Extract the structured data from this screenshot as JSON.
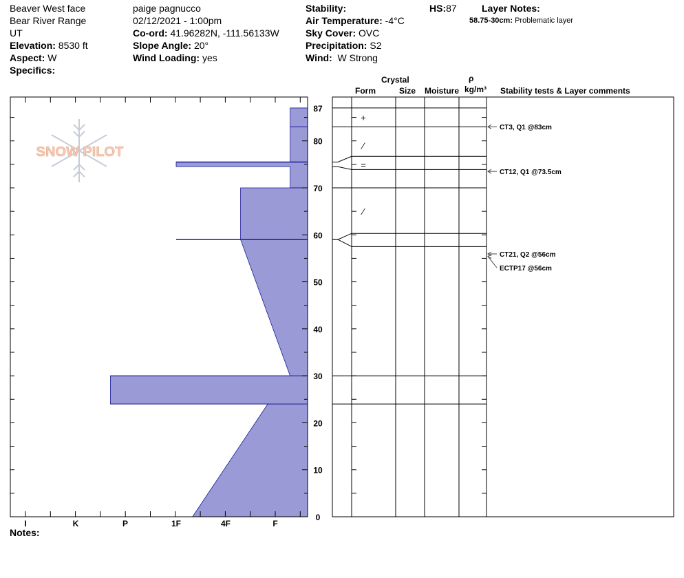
{
  "header": {
    "location": "Beaver West face",
    "range": "Bear River Range",
    "state": "UT",
    "elevation_label": "Elevation:",
    "elevation_value": "8530 ft",
    "aspect_label": "Aspect:",
    "aspect_value": "W",
    "specifics_label": "Specifics:",
    "observer": "paige pagnucco",
    "datetime": "02/12/2021 - 1:00pm",
    "coord_label": "Co-ord:",
    "coord_value": "41.96282N, -111.56133W",
    "slope_label": "Slope Angle:",
    "slope_value": "20°",
    "wind_loading_label": "Wind Loading:",
    "wind_loading_value": "yes",
    "stability_label": "Stability:",
    "air_temp_label": "Air Temperature:",
    "air_temp_value": "-4°C",
    "sky_label": "Sky Cover:",
    "sky_value": "OVC",
    "precip_label": "Precipitation:",
    "precip_value": "S2",
    "wind_label": "Wind:",
    "wind_value": "W Strong",
    "hs_label": "HS:",
    "hs_value": "87",
    "layer_notes_label": "Layer Notes:",
    "layer_note_depth": "58.75-30cm:",
    "layer_note_text": "Problematic layer"
  },
  "logo_text": "SNOW PILOT",
  "notes_label": "Notes:",
  "columns": {
    "crystal": "Crystal",
    "form": "Form",
    "size": "Size",
    "moisture": "Moisture",
    "rho": "ρ",
    "density_unit": "kg/m³",
    "stability": "Stability tests & Layer comments"
  },
  "chart_data": {
    "type": "area",
    "title": "",
    "xlabel": "",
    "ylabel": "",
    "hardness_categories": [
      "I",
      "K",
      "P",
      "1F",
      "4F",
      "F"
    ],
    "hardness_scale_note": "layer hardness drawn as filled profile; right edge of plot is low hardness",
    "y_ticks": [
      0,
      10,
      20,
      30,
      40,
      50,
      60,
      70,
      80,
      87
    ],
    "ylim": [
      0,
      87
    ],
    "fill_color": "#9a9ad6",
    "edge_color": "#1a1a99",
    "layer_boundaries_cm": [
      87,
      83,
      75.5,
      74.5,
      70,
      60,
      57.5,
      30,
      24,
      0
    ],
    "profile_x_label_position": [
      {
        "height_cm": 87,
        "hardness_index": 5.3
      },
      {
        "height_cm": 83,
        "hardness_index": 5.3
      },
      {
        "height_cm": 75.5,
        "hardness_index": 3.0
      },
      {
        "height_cm": 74.5,
        "hardness_index": 5.3
      },
      {
        "height_cm": 70,
        "hardness_index": 4.3
      },
      {
        "height_cm": 59,
        "hardness_index": 4.3
      },
      {
        "height_cm": 30,
        "hardness_index": 5.3
      },
      {
        "height_cm": 24,
        "hardness_index": 1.7
      },
      {
        "height_cm": 0,
        "hardness_index": 3.33
      }
    ],
    "grain_forms": [
      {
        "symbol": "+",
        "height_cm": 85
      },
      {
        "symbol": "⁄",
        "height_cm": 79
      },
      {
        "symbol": "=",
        "height_cm": 75
      },
      {
        "symbol": "⁄",
        "height_cm": 65
      }
    ],
    "stability_tests": [
      {
        "label": "CT3, Q1 @83cm",
        "height_cm": 83
      },
      {
        "label": "CT12, Q1 @73.5cm",
        "height_cm": 73.5
      },
      {
        "label": "CT21, Q2 @56cm",
        "height_cm": 56
      },
      {
        "label": "ECTP17 @56cm",
        "height_cm": 56
      }
    ]
  }
}
